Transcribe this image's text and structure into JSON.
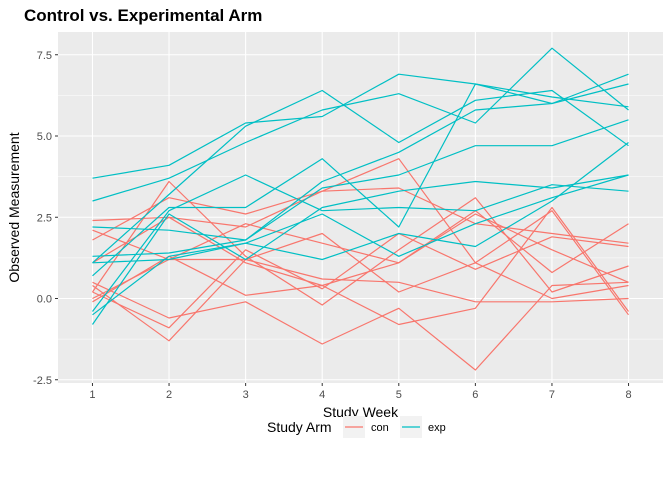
{
  "chart_data": {
    "type": "line",
    "title": "Control vs. Experimental Arm",
    "xlabel": "Study Week",
    "ylabel": "Observed Measurement",
    "x": [
      1,
      2,
      3,
      4,
      5,
      6,
      7,
      8
    ],
    "x_ticks": [
      "1",
      "2",
      "3",
      "4",
      "5",
      "6",
      "7",
      "8"
    ],
    "y_ticks": [
      "-2.5",
      "0.0",
      "2.5",
      "5.0",
      "7.5"
    ],
    "ylim": [
      -2.6,
      8.2
    ],
    "grid": true,
    "legend": {
      "title": "Study Arm",
      "position": "bottom",
      "entries": [
        {
          "label": "con",
          "color": "#F8766D"
        },
        {
          "label": "exp",
          "color": "#00BFC4"
        }
      ]
    },
    "series": [
      {
        "group": "con",
        "values": [
          0.2,
          -0.9,
          1.5,
          0.3,
          2.0,
          0.9,
          1.9,
          1.6
        ]
      },
      {
        "group": "con",
        "values": [
          1.1,
          2.5,
          1.1,
          0.4,
          1.1,
          2.7,
          0.8,
          2.3
        ]
      },
      {
        "group": "con",
        "values": [
          0.5,
          -0.6,
          -0.1,
          -1.4,
          -0.3,
          -2.2,
          0.4,
          0.5
        ]
      },
      {
        "group": "con",
        "values": [
          2.4,
          2.5,
          2.2,
          3.3,
          3.4,
          2.3,
          2.0,
          1.7
        ]
      },
      {
        "group": "con",
        "values": [
          1.8,
          3.1,
          2.6,
          3.3,
          4.3,
          1.1,
          2.7,
          -0.5
        ]
      },
      {
        "group": "con",
        "values": [
          0.0,
          1.2,
          2.3,
          1.7,
          1.1,
          2.6,
          1.5,
          0.5
        ]
      },
      {
        "group": "con",
        "values": [
          0.4,
          -1.3,
          1.2,
          2.0,
          0.2,
          1.1,
          0.0,
          0.4
        ]
      },
      {
        "group": "con",
        "values": [
          2.1,
          1.2,
          1.2,
          0.6,
          0.5,
          -0.1,
          -0.1,
          0.0
        ]
      },
      {
        "group": "con",
        "values": [
          0.2,
          3.6,
          1.3,
          -0.2,
          1.5,
          3.1,
          0.2,
          1.0
        ]
      },
      {
        "group": "con",
        "values": [
          -0.1,
          1.3,
          0.1,
          0.4,
          -0.8,
          -0.3,
          2.8,
          -0.4
        ]
      },
      {
        "group": "exp",
        "values": [
          3.7,
          4.1,
          5.4,
          5.6,
          6.9,
          6.6,
          6.2,
          5.9
        ]
      },
      {
        "group": "exp",
        "values": [
          3.0,
          3.7,
          4.8,
          5.8,
          6.3,
          5.4,
          7.7,
          5.8
        ]
      },
      {
        "group": "exp",
        "values": [
          1.1,
          3.2,
          5.3,
          6.4,
          4.8,
          6.1,
          6.4,
          4.7
        ]
      },
      {
        "group": "exp",
        "values": [
          0.7,
          2.8,
          2.8,
          4.3,
          2.2,
          6.6,
          6.0,
          6.9
        ]
      },
      {
        "group": "exp",
        "values": [
          2.2,
          2.1,
          1.8,
          3.6,
          4.5,
          5.8,
          6.0,
          6.6
        ]
      },
      {
        "group": "exp",
        "values": [
          1.3,
          1.4,
          1.8,
          3.4,
          3.8,
          4.7,
          4.7,
          5.5
        ]
      },
      {
        "group": "exp",
        "values": [
          -0.4,
          2.7,
          3.8,
          2.7,
          2.8,
          2.7,
          3.5,
          3.3
        ]
      },
      {
        "group": "exp",
        "values": [
          -0.8,
          2.6,
          1.2,
          2.8,
          3.3,
          3.6,
          3.4,
          3.8
        ]
      },
      {
        "group": "exp",
        "values": [
          1.1,
          1.2,
          1.7,
          2.6,
          1.3,
          2.3,
          3.1,
          3.8
        ]
      },
      {
        "group": "exp",
        "values": [
          -0.5,
          1.3,
          1.7,
          1.2,
          2.0,
          1.6,
          3.0,
          4.8
        ]
      }
    ]
  }
}
